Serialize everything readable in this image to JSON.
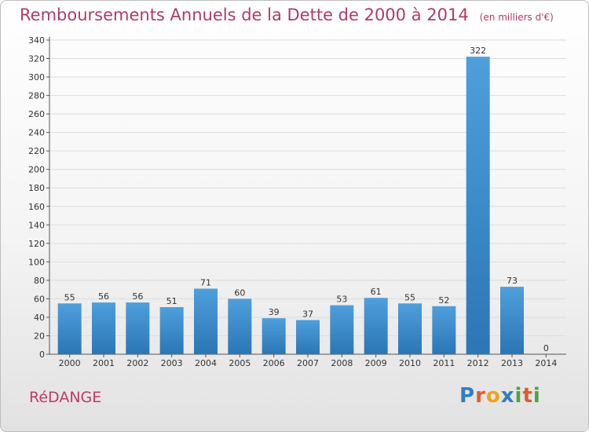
{
  "header": {
    "title": "Remboursements Annuels de la Dette de 2000 à 2014",
    "subtitle": "(en milliers d'€)"
  },
  "footer": {
    "commune": "RéDANGE",
    "logo": {
      "letters": [
        "P",
        "r",
        "o",
        "x",
        "i",
        "t",
        "i"
      ],
      "colors": [
        "#2f7fc4",
        "#e25b2a",
        "#f0a21a",
        "#2f7fc4",
        "#4aa63b",
        "#e25b2a",
        "#4aa63b"
      ]
    }
  },
  "chart_data": {
    "type": "bar",
    "categories": [
      "2000",
      "2001",
      "2002",
      "2003",
      "2004",
      "2005",
      "2006",
      "2007",
      "2008",
      "2009",
      "2010",
      "2011",
      "2012",
      "2013",
      "2014"
    ],
    "values": [
      55,
      56,
      56,
      51,
      71,
      60,
      39,
      37,
      53,
      61,
      55,
      52,
      322,
      73,
      0
    ],
    "title": "Remboursements Annuels de la Dette de 2000 à 2014",
    "subtitle": "(en milliers d'€)",
    "ylim": [
      0,
      340
    ],
    "yticks": [
      0,
      20,
      40,
      60,
      80,
      100,
      120,
      140,
      160,
      180,
      200,
      220,
      240,
      260,
      280,
      300,
      320,
      340
    ],
    "grid": true,
    "bar_color": "#4f9fdc",
    "bar_color_dark": "#2b76b5",
    "data_labels": true
  }
}
